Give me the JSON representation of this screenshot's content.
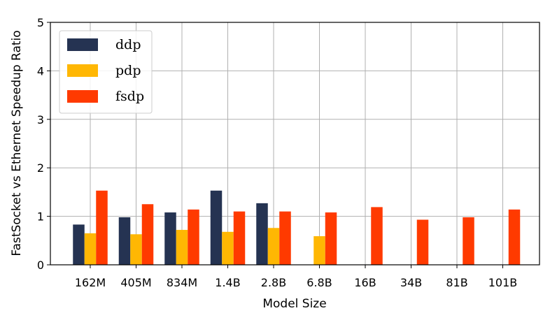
{
  "chart_data": {
    "type": "bar",
    "xlabel": "Model Size",
    "ylabel": "FastSocket vs Ethernet Speedup Ratio",
    "ylim": [
      0,
      5
    ],
    "yticks": [
      "0",
      "1",
      "2",
      "3",
      "4",
      "5"
    ],
    "grid": true,
    "legend_position": "top-left",
    "categories": [
      "162M",
      "405M",
      "834M",
      "1.4B",
      "2.8B",
      "6.8B",
      "16B",
      "34B",
      "81B",
      "101B"
    ],
    "series": [
      {
        "name": "ddp",
        "color": "#253352",
        "values": [
          0.83,
          0.98,
          1.08,
          1.53,
          1.27,
          null,
          null,
          null,
          null,
          null
        ]
      },
      {
        "name": "pdp",
        "color": "#FFB703",
        "values": [
          0.65,
          0.63,
          0.72,
          0.68,
          0.76,
          0.59,
          null,
          null,
          null,
          null
        ]
      },
      {
        "name": "fsdp",
        "color": "#FF3A00",
        "values": [
          1.53,
          1.25,
          1.14,
          1.1,
          1.1,
          1.08,
          1.19,
          0.93,
          0.98,
          1.14
        ]
      }
    ]
  }
}
